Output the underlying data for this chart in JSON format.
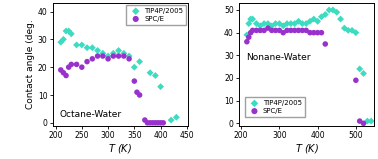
{
  "octane_tip4p_x": [
    210,
    215,
    220,
    225,
    230,
    240,
    250,
    260,
    270,
    280,
    290,
    300,
    310,
    320,
    330,
    340,
    350,
    360,
    380,
    390,
    400,
    420,
    430
  ],
  "octane_tip4p_y": [
    29,
    30,
    33,
    33,
    32,
    28,
    28,
    27,
    27,
    26,
    25,
    24,
    25,
    26,
    25,
    24,
    20,
    22,
    18,
    17,
    13,
    1,
    2
  ],
  "octane_spce_x": [
    210,
    215,
    220,
    225,
    230,
    240,
    250,
    260,
    270,
    280,
    290,
    300,
    310,
    320,
    330,
    340,
    350,
    355,
    360,
    370,
    375,
    380,
    385,
    390,
    395,
    400,
    405
  ],
  "octane_spce_y": [
    19,
    18,
    17,
    20,
    21,
    21,
    20,
    22,
    23,
    24,
    24,
    23,
    24,
    24,
    24,
    23,
    15,
    11,
    10,
    1,
    0,
    0,
    0,
    0,
    0,
    0,
    0
  ],
  "nonane_tip4p_x": [
    215,
    220,
    225,
    230,
    240,
    250,
    260,
    270,
    280,
    290,
    300,
    310,
    320,
    330,
    340,
    350,
    360,
    370,
    380,
    390,
    400,
    410,
    420,
    430,
    440,
    450,
    460,
    470,
    480,
    490,
    500,
    510,
    520,
    530,
    540
  ],
  "nonane_tip4p_y": [
    39,
    44,
    46,
    46,
    44,
    43,
    44,
    44,
    43,
    44,
    44,
    43,
    44,
    44,
    44,
    45,
    44,
    44,
    45,
    46,
    45,
    47,
    48,
    50,
    50,
    49,
    46,
    42,
    41,
    41,
    40,
    24,
    22,
    1,
    1
  ],
  "nonane_spce_x": [
    215,
    220,
    225,
    230,
    240,
    250,
    260,
    270,
    280,
    290,
    300,
    310,
    320,
    330,
    340,
    350,
    360,
    370,
    380,
    390,
    400,
    410,
    420,
    500,
    510,
    520
  ],
  "nonane_spce_y": [
    36,
    38,
    40,
    41,
    41,
    41,
    41,
    42,
    41,
    41,
    41,
    40,
    41,
    41,
    41,
    41,
    41,
    41,
    40,
    40,
    40,
    40,
    35,
    19,
    1,
    0
  ],
  "color_tip4p": "#3DDBC0",
  "color_spce": "#9932CC",
  "marker_tip4p": "D",
  "marker_spce": "o",
  "markersize_tip4p": 3.5,
  "markersize_spce": 4.0,
  "ylabel": "Contact angle (deg.",
  "label_tip4p": "TIP4P/2005",
  "label_spce": "SPC/E",
  "title_left": "Octane-Water",
  "title_right": "Nonane-Water",
  "xlim_left": [
    195,
    452
  ],
  "xlim_right": [
    195,
    548
  ],
  "ylim_left": [
    -1,
    43
  ],
  "ylim_right": [
    -1,
    53
  ],
  "xticks_left": [
    200,
    250,
    300,
    350,
    400,
    450
  ],
  "xticks_right": [
    200,
    300,
    400,
    500
  ],
  "yticks_left": [
    0,
    10,
    20,
    30,
    40
  ],
  "yticks_right": [
    0,
    10,
    20,
    30,
    40,
    50
  ]
}
